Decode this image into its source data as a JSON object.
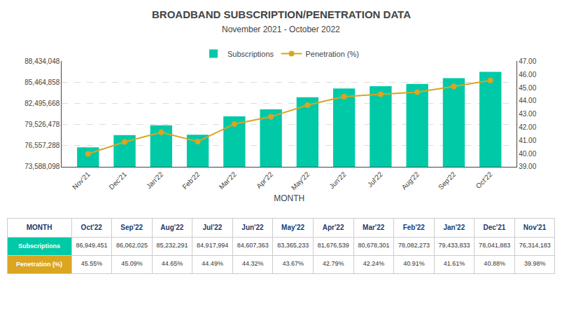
{
  "chart_data": [
    {
      "type": "bar",
      "title": "BROADBAND SUBSCRIPTION/PENETRATION DATA",
      "subtitle": "November 2021 - October 2022",
      "categories": [
        "Nov'21",
        "Dec'21",
        "Jan'22",
        "Feb'22",
        "Mar'22",
        "Apr'22",
        "May'22",
        "Jun'22",
        "Jul'22",
        "Aug'22",
        "Sep'22",
        "Oct'22"
      ],
      "xlabel": "MONTH",
      "series": [
        {
          "name": "Subscriptions",
          "type": "bar",
          "color": "#00C9A7",
          "values": [
            76314183,
            78041883,
            79433833,
            78082273,
            80678301,
            81676539,
            83365233,
            84607363,
            84917994,
            85232291,
            86062025,
            86949451
          ]
        },
        {
          "name": "Penetration (%)",
          "type": "line",
          "color": "#DAA520",
          "marker": "circle",
          "axis": "y2",
          "values": [
            39.98,
            40.88,
            41.61,
            40.91,
            42.24,
            42.79,
            43.67,
            44.32,
            44.49,
            44.65,
            45.09,
            45.55
          ]
        }
      ],
      "ylim": [
        73588098,
        88434048
      ],
      "yticks": [
        {
          "value": 73588098,
          "label": "73,588,098"
        },
        {
          "value": 76557288,
          "label": "76,557,288"
        },
        {
          "value": 79526478,
          "label": "79,526,478"
        },
        {
          "value": 82495668,
          "label": "82,495,668"
        },
        {
          "value": 85464858,
          "label": "85,464,858"
        },
        {
          "value": 88434048,
          "label": "88,434,048"
        }
      ],
      "y2lim": [
        39.0,
        47.0
      ],
      "y2ticks": [
        {
          "value": 39.0,
          "label": "39.00"
        },
        {
          "value": 40.0,
          "label": "40.00"
        },
        {
          "value": 41.0,
          "label": "41.00"
        },
        {
          "value": 42.0,
          "label": "42.00"
        },
        {
          "value": 43.0,
          "label": "43.00"
        },
        {
          "value": 44.0,
          "label": "44.00"
        },
        {
          "value": 45.0,
          "label": "45.00"
        },
        {
          "value": 46.0,
          "label": "46.00"
        },
        {
          "value": 47.0,
          "label": "47.00"
        }
      ],
      "grid": true,
      "legend": "top"
    },
    {
      "type": "table",
      "xlabel": "MONTH",
      "color": "#1B3A6B",
      "categories": [
        "Oct'22",
        "Sep'22",
        "Aug'22",
        "Jul'22",
        "Jun'22",
        "May'22",
        "Apr'22",
        "Mar'22",
        "Feb'22",
        "Jan'22",
        "Dec'21",
        "Nov'21"
      ],
      "series": [
        {
          "name": "Subscriptions",
          "color": "#00C9A7",
          "values": [
            86949451,
            86062025,
            85232291,
            84917994,
            84607363,
            83365233,
            81676539,
            80678301,
            78082273,
            79433833,
            78041883,
            76314183
          ],
          "value_labels": [
            "86,949,451",
            "86,062,025",
            "85,232,291",
            "84,917,994",
            "84,607,363",
            "83,365,233",
            "81,676,539",
            "80,678,301",
            "78,082,273",
            "79,433,833",
            "78,041,883",
            "76,314,183"
          ]
        },
        {
          "name": "Penetration (%)",
          "color": "#DAA520",
          "values": [
            45.55,
            45.09,
            44.65,
            44.49,
            44.32,
            43.67,
            42.79,
            42.24,
            40.91,
            41.61,
            40.88,
            39.98
          ],
          "value_labels": [
            "45.55%",
            "45.09%",
            "44.65%",
            "44.49%",
            "44.32%",
            "43.67%",
            "42.79%",
            "42.24%",
            "40.91%",
            "41.61%",
            "40.88%",
            "39.98%"
          ]
        }
      ]
    }
  ]
}
